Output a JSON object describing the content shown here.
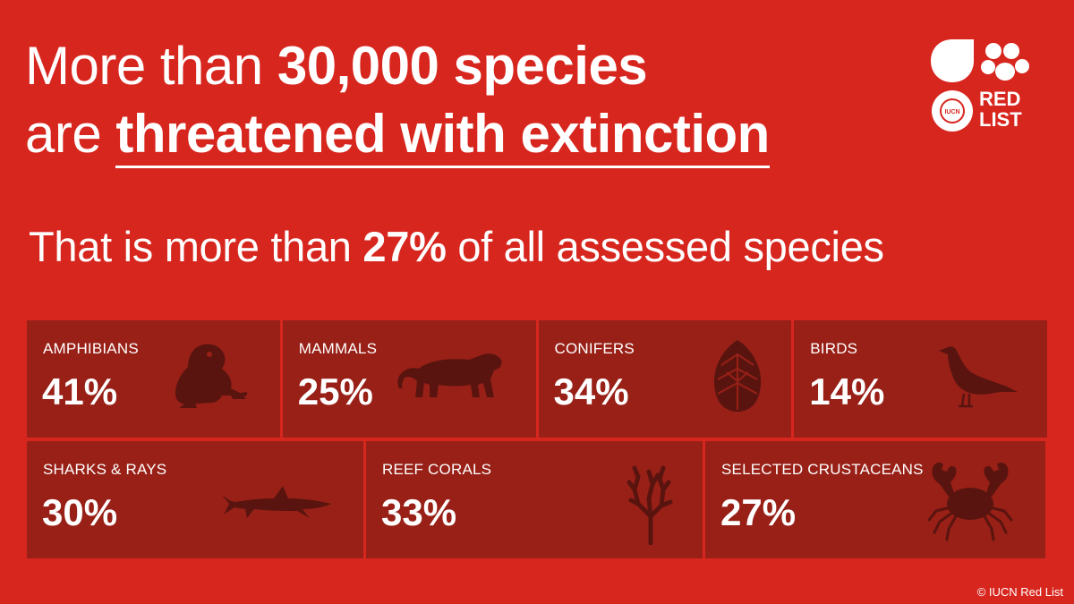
{
  "headline": {
    "line1_prefix": "More than ",
    "line1_bold": "30,000 species",
    "line2_prefix": "are ",
    "line2_underlined": "threatened with extinction"
  },
  "subline": {
    "prefix": "That is more than ",
    "bold": "27%",
    "suffix": " of all assessed species"
  },
  "logo": {
    "iucn": "IUCN",
    "red": "RED",
    "list": "LIST",
    "icon": "iucn-red-list-logo-icon"
  },
  "colors": {
    "background": "#d7261e",
    "tile": "#982017",
    "icon": "#5a140f",
    "text": "#ffffff"
  },
  "groups": [
    {
      "label": "AMPHIBIANS",
      "value": "41%",
      "icon": "frog-icon"
    },
    {
      "label": "MAMMALS",
      "value": "25%",
      "icon": "tiger-icon"
    },
    {
      "label": "CONIFERS",
      "value": "34%",
      "icon": "pine-cone-icon"
    },
    {
      "label": "BIRDS",
      "value": "14%",
      "icon": "bird-icon"
    },
    {
      "label": "SHARKS & RAYS",
      "value": "30%",
      "icon": "shark-icon"
    },
    {
      "label": "REEF CORALS",
      "value": "33%",
      "icon": "coral-icon"
    },
    {
      "label": "SELECTED CRUSTACEANS",
      "value": "27%",
      "icon": "crab-icon"
    }
  ],
  "copyright": "© IUCN Red List"
}
